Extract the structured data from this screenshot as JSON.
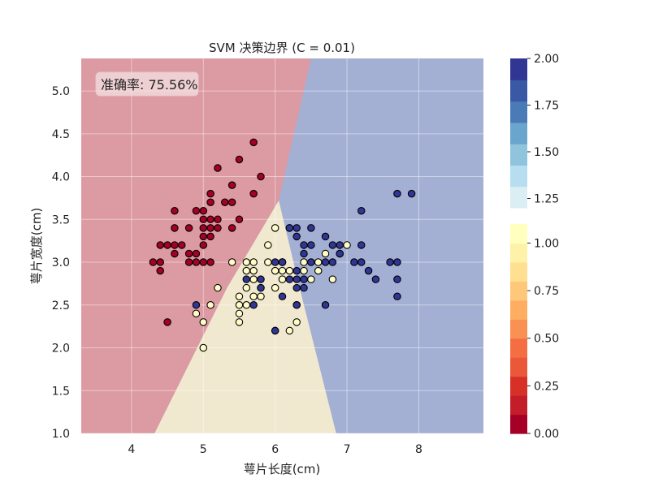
{
  "chart_data": {
    "type": "scatter",
    "title": "SVM 决策边界 (C = 0.01)",
    "xlabel": "萼片长度(cm)",
    "ylabel": "萼片宽度(cm)",
    "xlim": [
      3.3,
      8.9
    ],
    "ylim": [
      1.0,
      5.38
    ],
    "xticks": [
      "4",
      "5",
      "6",
      "7",
      "8"
    ],
    "yticks": [
      "1.0",
      "1.5",
      "2.0",
      "2.5",
      "3.0",
      "3.5",
      "4.0",
      "4.5",
      "5.0"
    ],
    "grid": true,
    "annotation": "准确率: 75.56%",
    "regions": {
      "class0_color": "#dc9aa2",
      "class1_color": "#f1e9cf",
      "class2_color": "#a3b0d4",
      "boundaries": [
        {
          "between": "0-1",
          "points": [
            [
              4.32,
              1.0
            ],
            [
              5.33,
              2.7
            ],
            [
              6.05,
              3.72
            ]
          ]
        },
        {
          "between": "1-2",
          "points": [
            [
              6.85,
              1.0
            ],
            [
              6.37,
              2.6
            ],
            [
              6.05,
              3.72
            ]
          ]
        },
        {
          "between": "0-2",
          "points": [
            [
              6.05,
              3.72
            ],
            [
              6.5,
              5.38
            ]
          ]
        }
      ]
    },
    "series": [
      {
        "class": 0,
        "color": "#a50026",
        "points": [
          [
            4.3,
            3.0
          ],
          [
            4.4,
            3.2
          ],
          [
            4.4,
            3.0
          ],
          [
            4.4,
            2.9
          ],
          [
            4.5,
            2.3
          ],
          [
            4.6,
            3.6
          ],
          [
            4.6,
            3.4
          ],
          [
            4.6,
            3.2
          ],
          [
            4.6,
            3.1
          ],
          [
            4.7,
            3.2
          ],
          [
            4.8,
            3.4
          ],
          [
            4.8,
            3.0
          ],
          [
            4.8,
            3.1
          ],
          [
            4.9,
            3.6
          ],
          [
            4.9,
            3.1
          ],
          [
            4.9,
            3.0
          ],
          [
            5.0,
            3.6
          ],
          [
            5.0,
            3.5
          ],
          [
            5.0,
            3.4
          ],
          [
            5.0,
            3.3
          ],
          [
            5.0,
            3.0
          ],
          [
            5.0,
            3.2
          ],
          [
            5.1,
            3.8
          ],
          [
            5.1,
            3.7
          ],
          [
            5.1,
            3.5
          ],
          [
            5.1,
            3.4
          ],
          [
            5.1,
            3.3
          ],
          [
            5.2,
            4.1
          ],
          [
            5.2,
            3.5
          ],
          [
            5.2,
            3.4
          ],
          [
            5.3,
            3.7
          ],
          [
            5.4,
            3.9
          ],
          [
            5.4,
            3.7
          ],
          [
            5.4,
            3.4
          ],
          [
            5.5,
            4.2
          ],
          [
            5.5,
            3.5
          ],
          [
            5.7,
            4.4
          ],
          [
            5.7,
            3.8
          ],
          [
            5.8,
            4.0
          ],
          [
            5.1,
            3.0
          ],
          [
            4.5,
            3.2
          ]
        ]
      },
      {
        "class": 1,
        "color": "#fffcc8",
        "points": [
          [
            4.9,
            2.4
          ],
          [
            5.0,
            2.0
          ],
          [
            5.0,
            2.3
          ],
          [
            5.1,
            2.5
          ],
          [
            5.2,
            2.7
          ],
          [
            5.4,
            3.0
          ],
          [
            5.5,
            2.3
          ],
          [
            5.5,
            2.4
          ],
          [
            5.5,
            2.5
          ],
          [
            5.5,
            2.6
          ],
          [
            5.6,
            2.5
          ],
          [
            5.6,
            2.7
          ],
          [
            5.6,
            2.9
          ],
          [
            5.6,
            3.0
          ],
          [
            5.7,
            2.6
          ],
          [
            5.7,
            2.8
          ],
          [
            5.7,
            2.9
          ],
          [
            5.7,
            3.0
          ],
          [
            5.8,
            2.6
          ],
          [
            5.8,
            2.7
          ],
          [
            5.9,
            3.2
          ],
          [
            5.9,
            3.0
          ],
          [
            6.0,
            3.4
          ],
          [
            6.0,
            2.9
          ],
          [
            6.0,
            2.7
          ],
          [
            6.0,
            2.2
          ],
          [
            6.1,
            3.0
          ],
          [
            6.1,
            2.8
          ],
          [
            6.1,
            2.9
          ],
          [
            6.2,
            2.9
          ],
          [
            6.2,
            2.2
          ],
          [
            6.3,
            2.3
          ],
          [
            6.3,
            2.5
          ],
          [
            6.4,
            2.9
          ],
          [
            6.4,
            3.0
          ],
          [
            6.5,
            2.8
          ],
          [
            6.6,
            3.0
          ],
          [
            6.6,
            2.9
          ],
          [
            6.8,
            2.8
          ],
          [
            7.0,
            3.2
          ],
          [
            6.7,
            3.1
          ],
          [
            6.9,
            3.1
          ]
        ]
      },
      {
        "class": 2,
        "color": "#313695",
        "points": [
          [
            4.9,
            2.5
          ],
          [
            5.6,
            2.8
          ],
          [
            5.7,
            2.5
          ],
          [
            5.8,
            2.7
          ],
          [
            5.8,
            2.8
          ],
          [
            6.0,
            2.2
          ],
          [
            6.0,
            3.0
          ],
          [
            6.1,
            2.6
          ],
          [
            6.1,
            3.0
          ],
          [
            6.2,
            2.8
          ],
          [
            6.2,
            3.4
          ],
          [
            6.3,
            2.5
          ],
          [
            6.3,
            2.7
          ],
          [
            6.3,
            2.8
          ],
          [
            6.3,
            2.9
          ],
          [
            6.3,
            3.3
          ],
          [
            6.3,
            3.4
          ],
          [
            6.4,
            2.7
          ],
          [
            6.4,
            2.8
          ],
          [
            6.4,
            3.1
          ],
          [
            6.4,
            3.2
          ],
          [
            6.5,
            3.0
          ],
          [
            6.5,
            3.2
          ],
          [
            6.5,
            3.4
          ],
          [
            6.7,
            2.5
          ],
          [
            6.7,
            3.0
          ],
          [
            6.7,
            3.3
          ],
          [
            6.8,
            3.0
          ],
          [
            6.8,
            3.2
          ],
          [
            6.9,
            3.1
          ],
          [
            6.9,
            3.2
          ],
          [
            7.1,
            3.0
          ],
          [
            7.2,
            3.0
          ],
          [
            7.2,
            3.2
          ],
          [
            7.2,
            3.6
          ],
          [
            7.3,
            2.9
          ],
          [
            7.4,
            2.8
          ],
          [
            7.6,
            3.0
          ],
          [
            7.7,
            2.6
          ],
          [
            7.7,
            2.8
          ],
          [
            7.7,
            3.0
          ],
          [
            7.7,
            3.8
          ],
          [
            7.9,
            3.8
          ],
          [
            6.1,
            3.0
          ],
          [
            6.2,
            3.4
          ]
        ]
      }
    ],
    "colorbars": [
      {
        "range": [
          1.2,
          2.0
        ],
        "ticks": [
          "1.25",
          "1.50",
          "1.75",
          "2.00"
        ],
        "colors": [
          "#dbeef4",
          "#b7def0",
          "#90c4dd",
          "#69a5cc",
          "#4a7bb7",
          "#3a59a4",
          "#313695"
        ]
      },
      {
        "range": [
          0.0,
          1.1
        ],
        "ticks": [
          "0.00",
          "0.25",
          "0.50",
          "0.75",
          "1.00"
        ],
        "colors": [
          "#a50026",
          "#c31d2a",
          "#d73027",
          "#ea5739",
          "#f46d43",
          "#f99153",
          "#fdae61",
          "#fdc879",
          "#fee090",
          "#fef1a8",
          "#ffffbf"
        ]
      }
    ]
  }
}
